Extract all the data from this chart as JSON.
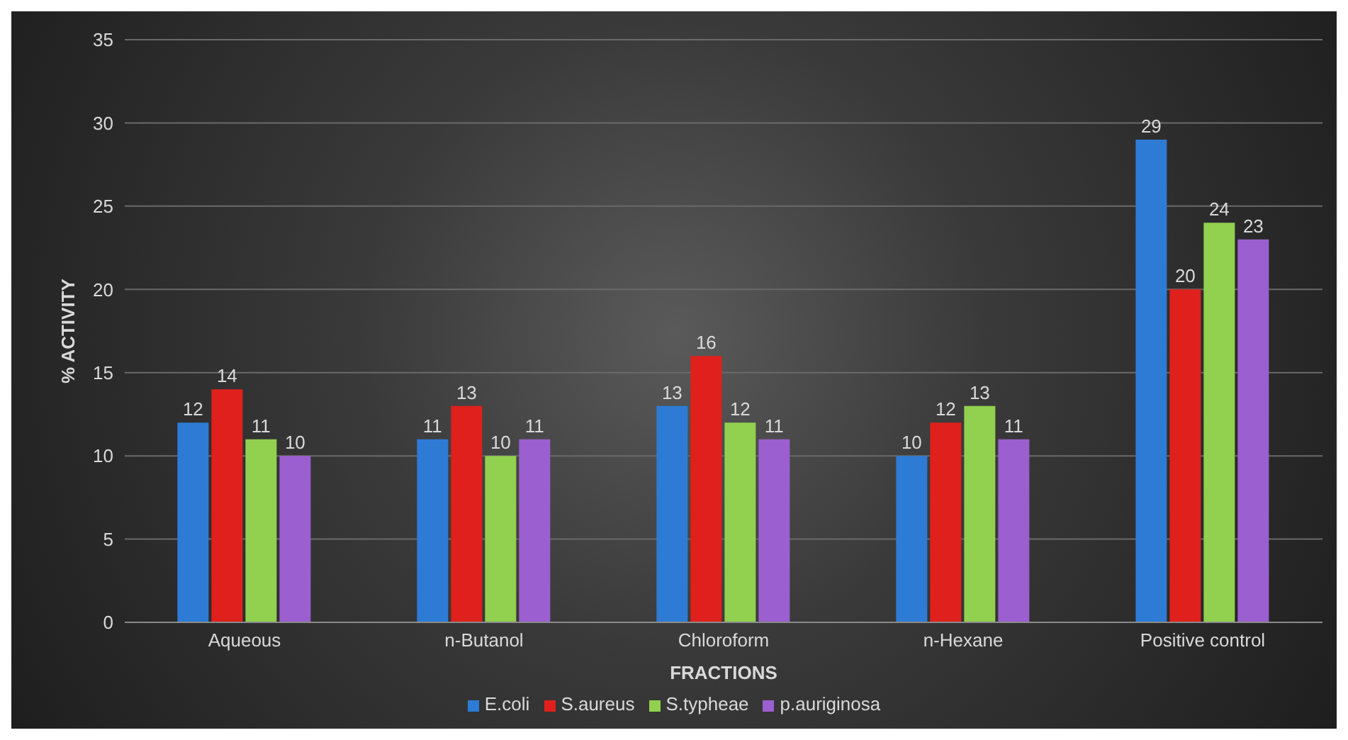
{
  "chart_data": {
    "type": "bar",
    "xlabel": "FRACTIONS",
    "ylabel": "% ACTIVITY",
    "categories": [
      "Aqueous",
      "n-Butanol",
      "Chloroform",
      "n-Hexane",
      "Positive control"
    ],
    "series": [
      {
        "name": "E.coli",
        "color": "#2e7bd6",
        "values": [
          12,
          11,
          13,
          10,
          29
        ]
      },
      {
        "name": "S.aureus",
        "color": "#e0201c",
        "values": [
          14,
          13,
          16,
          12,
          20
        ]
      },
      {
        "name": "S.typheae",
        "color": "#92d04f",
        "values": [
          11,
          10,
          12,
          13,
          24
        ]
      },
      {
        "name": "p.auriginosa",
        "color": "#9b5fd0",
        "values": [
          10,
          11,
          11,
          11,
          23
        ]
      }
    ],
    "ylim": [
      0,
      35
    ],
    "yticks": [
      0,
      5,
      10,
      15,
      20,
      25,
      30,
      35
    ],
    "grid": "y",
    "legend": "bottom",
    "data_labels": true
  }
}
